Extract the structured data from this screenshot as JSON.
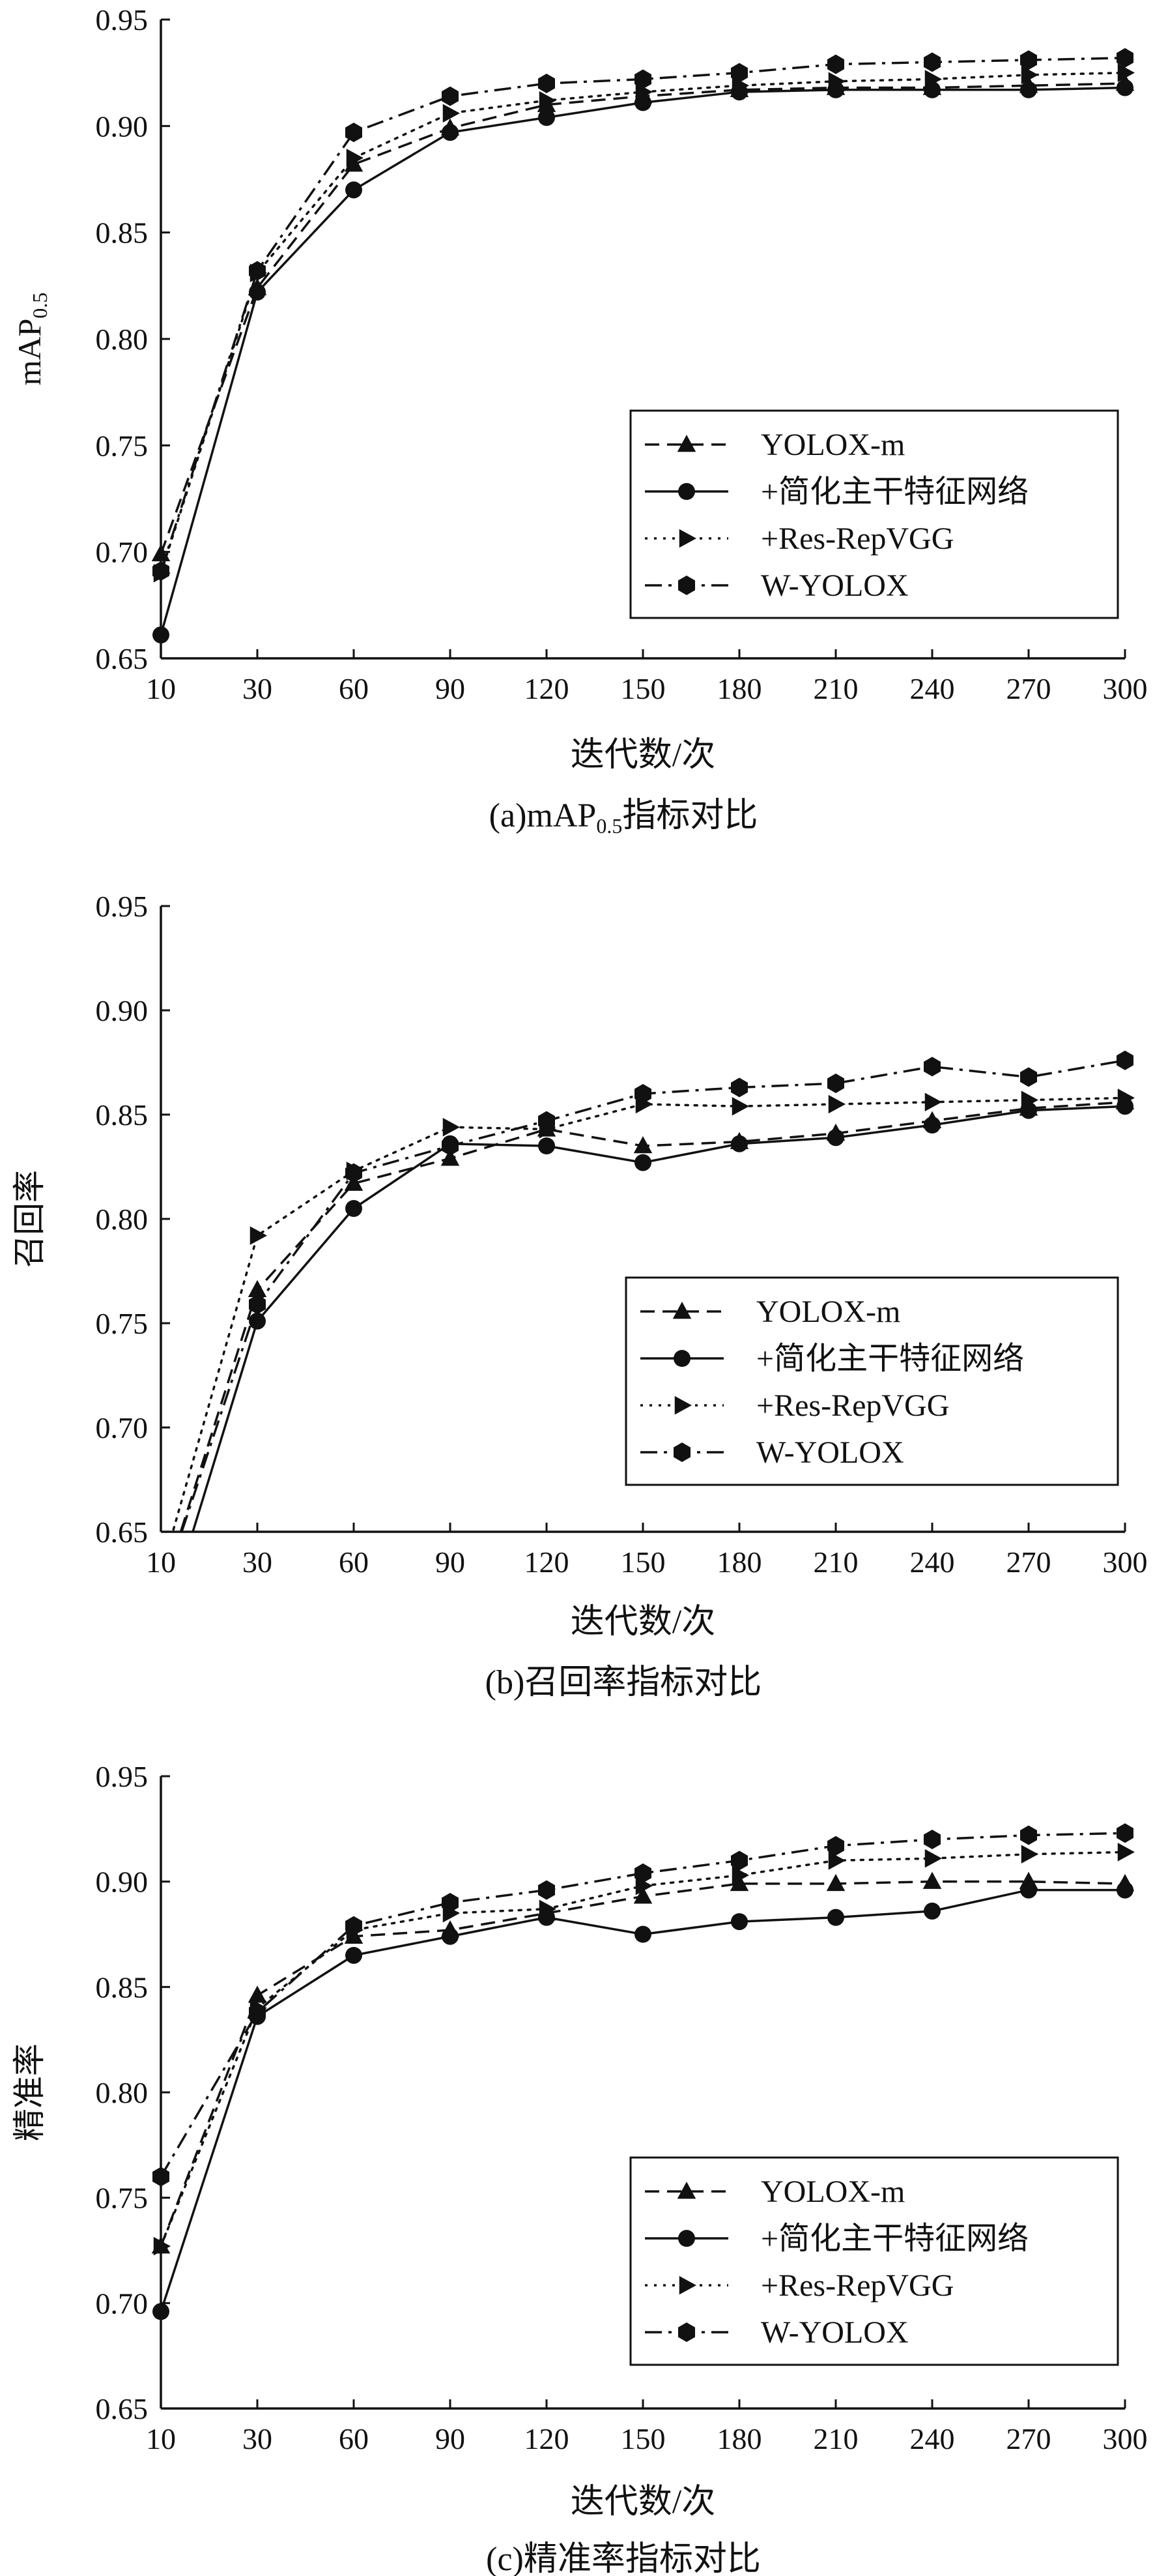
{
  "colors": {
    "ink": "#111111",
    "background": "#ffffff"
  },
  "legend_entries": [
    {
      "label": "YOLOX-m",
      "marker": "triangle-up",
      "dash": "dashed"
    },
    {
      "label": "+简化主干特征网络",
      "marker": "circle",
      "dash": "solid"
    },
    {
      "label": "+Res-RepVGG",
      "marker": "triangle-right",
      "dash": "dotted"
    },
    {
      "label": "W-YOLOX",
      "marker": "hexagon",
      "dash": "dashdot"
    }
  ],
  "chart_data": [
    {
      "type": "line",
      "ylabel": "mAP",
      "ylabel_sub": "0.5",
      "xlabel": "迭代数/次",
      "caption_prefix": "(a)mAP",
      "caption_sub": "0.5",
      "caption_suffix": "指标对比",
      "ylim": [
        0.65,
        0.95
      ],
      "yticks": [
        "0.65",
        "0.70",
        "0.75",
        "0.80",
        "0.85",
        "0.90",
        "0.95"
      ],
      "x": [
        10,
        30,
        60,
        90,
        120,
        150,
        180,
        210,
        240,
        270,
        300
      ],
      "xticks": [
        "10",
        "30",
        "60",
        "90",
        "120",
        "150",
        "180",
        "210",
        "240",
        "270",
        "300"
      ],
      "legend_position": "bottom-right",
      "series": [
        {
          "name": "YOLOX-m",
          "values": [
            0.699,
            0.824,
            0.882,
            0.899,
            0.91,
            0.914,
            0.917,
            0.918,
            0.918,
            0.919,
            0.92
          ]
        },
        {
          "name": "+简化主干特征网络",
          "values": [
            0.661,
            0.822,
            0.87,
            0.897,
            0.904,
            0.911,
            0.916,
            0.917,
            0.917,
            0.917,
            0.918
          ]
        },
        {
          "name": "+Res-RepVGG",
          "values": [
            0.69,
            0.831,
            0.885,
            0.906,
            0.912,
            0.916,
            0.919,
            0.921,
            0.922,
            0.924,
            0.925
          ]
        },
        {
          "name": "W-YOLOX",
          "values": [
            0.691,
            0.832,
            0.897,
            0.914,
            0.92,
            0.922,
            0.925,
            0.929,
            0.93,
            0.931,
            0.932
          ]
        }
      ]
    },
    {
      "type": "line",
      "ylabel": "召回率",
      "xlabel": "迭代数/次",
      "caption": "(b)召回率指标对比",
      "ylim": [
        0.65,
        0.95
      ],
      "yticks": [
        "0.65",
        "0.70",
        "0.75",
        "0.80",
        "0.85",
        "0.90",
        "0.95"
      ],
      "x": [
        10,
        30,
        60,
        90,
        120,
        150,
        180,
        210,
        240,
        270,
        300
      ],
      "xticks": [
        "10",
        "30",
        "60",
        "90",
        "120",
        "150",
        "180",
        "210",
        "240",
        "270",
        "300"
      ],
      "legend_position": "bottom-right",
      "series": [
        {
          "name": "YOLOX-m",
          "values": [
            0.62,
            0.766,
            0.817,
            0.829,
            0.843,
            0.835,
            0.837,
            0.841,
            0.847,
            0.853,
            0.856
          ]
        },
        {
          "name": "+简化主干特征网络",
          "values": [
            0.6,
            0.751,
            0.805,
            0.836,
            0.835,
            0.827,
            0.836,
            0.839,
            0.845,
            0.852,
            0.854
          ]
        },
        {
          "name": "+Res-RepVGG",
          "values": [
            0.63,
            0.792,
            0.823,
            0.844,
            0.843,
            0.855,
            0.854,
            0.855,
            0.856,
            0.857,
            0.858
          ]
        },
        {
          "name": "W-YOLOX",
          "values": [
            0.62,
            0.759,
            0.822,
            0.835,
            0.847,
            0.86,
            0.863,
            0.865,
            0.873,
            0.868,
            0.876
          ]
        }
      ]
    },
    {
      "type": "line",
      "ylabel": "精准率",
      "xlabel": "迭代数/次",
      "caption": "(c)精准率指标对比",
      "ylim": [
        0.65,
        0.95
      ],
      "yticks": [
        "0.65",
        "0.70",
        "0.75",
        "0.80",
        "0.85",
        "0.90",
        "0.95"
      ],
      "x": [
        10,
        30,
        60,
        90,
        120,
        150,
        180,
        210,
        240,
        270,
        300
      ],
      "xticks": [
        "10",
        "30",
        "60",
        "90",
        "120",
        "150",
        "180",
        "210",
        "240",
        "270",
        "300"
      ],
      "legend_position": "bottom-right",
      "series": [
        {
          "name": "YOLOX-m",
          "values": [
            0.727,
            0.846,
            0.874,
            0.877,
            0.885,
            0.893,
            0.899,
            0.899,
            0.9,
            0.9,
            0.899
          ]
        },
        {
          "name": "+简化主干特征网络",
          "values": [
            0.696,
            0.836,
            0.865,
            0.874,
            0.883,
            0.875,
            0.881,
            0.883,
            0.886,
            0.896,
            0.896
          ]
        },
        {
          "name": "+Res-RepVGG",
          "values": [
            0.727,
            0.84,
            0.877,
            0.885,
            0.887,
            0.898,
            0.903,
            0.91,
            0.911,
            0.913,
            0.914
          ]
        },
        {
          "name": "W-YOLOX",
          "values": [
            0.76,
            0.838,
            0.879,
            0.89,
            0.896,
            0.904,
            0.91,
            0.917,
            0.92,
            0.922,
            0.923
          ]
        }
      ]
    }
  ]
}
